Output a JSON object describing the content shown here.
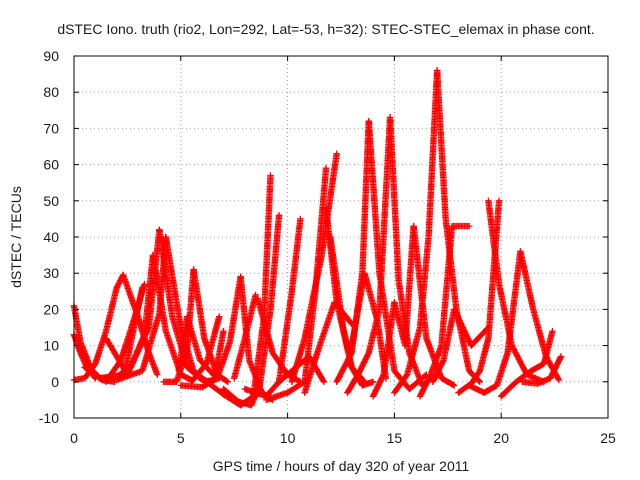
{
  "chart_data": {
    "type": "scatter",
    "title": "dSTEC Iono. truth (rio2, Lon=292, Lat=-53, h=32): STEC-STEC_elemax in phase cont.",
    "xlabel": "GPS time / hours of day 320 of year 2011",
    "ylabel": "dSTEC  / TECUs",
    "xlim": [
      0,
      25
    ],
    "ylim": [
      -10,
      90
    ],
    "x_ticks": [
      0,
      5,
      10,
      15,
      20,
      25
    ],
    "y_ticks": [
      -10,
      0,
      10,
      20,
      30,
      40,
      50,
      60,
      70,
      80,
      90
    ],
    "grid": true,
    "marker": "+",
    "color": "#ff0000",
    "series": [
      {
        "x": [
          0.0,
          0.5,
          1.0,
          1.5,
          2.0,
          2.3
        ],
        "y": [
          0.5,
          1.0,
          5.0,
          14.0,
          26.0,
          29.5
        ]
      },
      {
        "x": [
          0.0,
          0.3,
          0.8,
          1.3,
          1.9
        ],
        "y": [
          21.0,
          11.0,
          3.5,
          0.5,
          0.0
        ]
      },
      {
        "x": [
          1.5,
          2.2,
          2.8,
          3.3
        ],
        "y": [
          0.0,
          6.0,
          17.0,
          27.0
        ]
      },
      {
        "x": [
          2.3,
          3.0,
          3.5,
          3.9
        ],
        "y": [
          29.5,
          18.0,
          8.0,
          2.0
        ]
      },
      {
        "x": [
          0.0,
          0.3,
          0.6,
          1.0
        ],
        "y": [
          13.0,
          8.0,
          4.0,
          1.0
        ]
      },
      {
        "x": [
          0.5,
          1.2,
          2.0,
          2.4,
          2.7,
          3.2
        ],
        "y": [
          4.0,
          1.0,
          1.5,
          3.0,
          12.0,
          26.0
        ]
      },
      {
        "x": [
          1.5,
          2.5,
          3.3,
          3.7
        ],
        "y": [
          12.0,
          2.0,
          13.0,
          35.0
        ]
      },
      {
        "x": [
          3.7,
          4.3,
          5.0,
          5.5
        ],
        "y": [
          35.0,
          14.0,
          2.0,
          0.5
        ]
      },
      {
        "x": [
          1.2,
          2.5,
          3.5,
          4.0
        ],
        "y": [
          1.0,
          2.0,
          15.0,
          42.0
        ]
      },
      {
        "x": [
          4.0,
          4.6,
          5.3,
          6.0,
          6.5
        ],
        "y": [
          42.0,
          18.0,
          4.0,
          0.5,
          0.0
        ]
      },
      {
        "x": [
          2.0,
          3.2,
          4.0,
          4.3
        ],
        "y": [
          0.5,
          3.0,
          19.0,
          40.0
        ]
      },
      {
        "x": [
          4.3,
          5.0,
          5.6,
          6.2,
          6.8
        ],
        "y": [
          40.0,
          15.0,
          3.0,
          0.0,
          1.0
        ]
      },
      {
        "x": [
          4.2,
          4.8,
          5.3,
          5.6
        ],
        "y": [
          0.0,
          0.0,
          9.0,
          31.0
        ]
      },
      {
        "x": [
          5.6,
          6.1,
          6.7,
          7.2
        ],
        "y": [
          31.0,
          12.0,
          2.0,
          0.0
        ]
      },
      {
        "x": [
          4.9,
          5.3,
          5.9,
          6.6,
          7.0
        ],
        "y": [
          3.0,
          18.0,
          6.0,
          1.5,
          14.0
        ]
      },
      {
        "x": [
          5.5,
          6.2,
          6.8
        ],
        "y": [
          0.0,
          5.0,
          18.0
        ]
      },
      {
        "x": [
          5.0,
          6.0,
          6.7,
          7.3,
          7.8
        ],
        "y": [
          -1.0,
          -1.5,
          1.0,
          11.0,
          29.0
        ]
      },
      {
        "x": [
          7.8,
          8.2,
          8.8,
          9.3
        ],
        "y": [
          29.0,
          6.0,
          -3.0,
          -5.0
        ]
      },
      {
        "x": [
          6.0,
          7.0,
          7.8,
          8.4,
          8.9,
          9.2
        ],
        "y": [
          1.0,
          -3.5,
          -6.5,
          -4.0,
          18.0,
          57.0
        ]
      },
      {
        "x": [
          7.0,
          7.7,
          8.3,
          8.7,
          9.2,
          9.6
        ],
        "y": [
          -2.0,
          -5.5,
          -6.5,
          -1.0,
          20.0,
          46.0
        ]
      },
      {
        "x": [
          7.5,
          8.0,
          8.5
        ],
        "y": [
          1.0,
          12.0,
          24.0
        ]
      },
      {
        "x": [
          8.6,
          9.3,
          10.0,
          10.6
        ],
        "y": [
          23.0,
          8.0,
          2.0,
          0.0
        ]
      },
      {
        "x": [
          8.0,
          9.0,
          9.6,
          10.2,
          10.6
        ],
        "y": [
          -2.0,
          -4.0,
          0.0,
          25.0,
          45.0
        ]
      },
      {
        "x": [
          9.6,
          10.2,
          11.0,
          11.7
        ],
        "y": [
          0.0,
          3.0,
          7.0,
          0.0
        ]
      },
      {
        "x": [
          9.0,
          10.0,
          10.8,
          11.3,
          11.8
        ],
        "y": [
          -5.0,
          -3.0,
          0.0,
          25.0,
          59.0
        ]
      },
      {
        "x": [
          10.2,
          10.8,
          11.6,
          12.3
        ],
        "y": [
          0.0,
          12.0,
          35.0,
          63.0
        ]
      },
      {
        "x": [
          11.8,
          12.3,
          13.0,
          13.6
        ],
        "y": [
          48.0,
          22.0,
          4.0,
          0.0
        ]
      },
      {
        "x": [
          10.8,
          11.5,
          12.2,
          13.0
        ],
        "y": [
          -3.0,
          10.0,
          22.0,
          16.0
        ]
      },
      {
        "x": [
          12.0,
          12.6,
          13.0,
          13.5,
          14.0
        ],
        "y": [
          40.0,
          15.0,
          4.0,
          -1.0,
          0.0
        ]
      },
      {
        "x": [
          12.3,
          13.0,
          13.5,
          13.8
        ],
        "y": [
          0.0,
          8.0,
          30.0,
          72.0
        ]
      },
      {
        "x": [
          13.8,
          14.3,
          15.0,
          15.7,
          16.5
        ],
        "y": [
          72.0,
          30.0,
          3.0,
          -2.0,
          2.0
        ]
      },
      {
        "x": [
          12.8,
          13.3,
          13.8,
          14.3,
          14.8
        ],
        "y": [
          -3.0,
          2.0,
          8.0,
          20.0,
          73.0
        ]
      },
      {
        "x": [
          14.8,
          15.2,
          15.7,
          16.3,
          17.0
        ],
        "y": [
          73.0,
          28.0,
          8.0,
          -1.0,
          2.0
        ]
      },
      {
        "x": [
          13.0,
          13.6,
          14.2,
          14.6
        ],
        "y": [
          10.0,
          30.0,
          17.0,
          1.0
        ]
      },
      {
        "x": [
          14.0,
          14.5,
          15.0,
          15.5,
          15.9
        ],
        "y": [
          -4.0,
          2.0,
          22.0,
          10.0,
          43.0
        ]
      },
      {
        "x": [
          15.9,
          16.5,
          17.2,
          17.8
        ],
        "y": [
          43.0,
          12.0,
          1.0,
          -1.0
        ]
      },
      {
        "x": [
          15.0,
          15.6,
          16.2,
          16.6,
          17.0
        ],
        "y": [
          -3.0,
          2.0,
          15.0,
          40.0,
          86.0
        ]
      },
      {
        "x": [
          17.0,
          17.4,
          17.9,
          18.5,
          19.0
        ],
        "y": [
          86.0,
          45.0,
          20.0,
          3.0,
          0.0
        ]
      },
      {
        "x": [
          16.2,
          16.7,
          17.2,
          17.7,
          18.5
        ],
        "y": [
          -4.0,
          2.0,
          10.0,
          43.0,
          43.0
        ]
      },
      {
        "x": [
          16.8,
          17.3,
          17.8,
          18.6,
          19.4
        ],
        "y": [
          0.0,
          6.0,
          20.0,
          10.0,
          15.0
        ]
      },
      {
        "x": [
          18.0,
          18.6,
          19.0,
          19.4,
          19.9
        ],
        "y": [
          -3.0,
          -0.5,
          3.0,
          12.0,
          50.0
        ]
      },
      {
        "x": [
          19.4,
          19.9,
          20.5,
          21.2,
          22.0
        ],
        "y": [
          50.0,
          27.0,
          10.0,
          2.0,
          0.0
        ]
      },
      {
        "x": [
          18.5,
          19.2,
          19.8,
          20.3,
          20.9
        ],
        "y": [
          -1.0,
          -3.0,
          -1.0,
          8.0,
          36.0
        ]
      },
      {
        "x": [
          20.9,
          21.5,
          22.1,
          22.7
        ],
        "y": [
          36.0,
          20.0,
          7.0,
          0.5
        ]
      },
      {
        "x": [
          20.0,
          20.7,
          21.4,
          22.0,
          22.4
        ],
        "y": [
          -4.0,
          0.0,
          3.0,
          5.0,
          14.0
        ]
      },
      {
        "x": [
          21.0,
          21.7,
          22.3,
          22.8
        ],
        "y": [
          0.0,
          -0.5,
          1.0,
          7.0
        ]
      }
    ]
  }
}
